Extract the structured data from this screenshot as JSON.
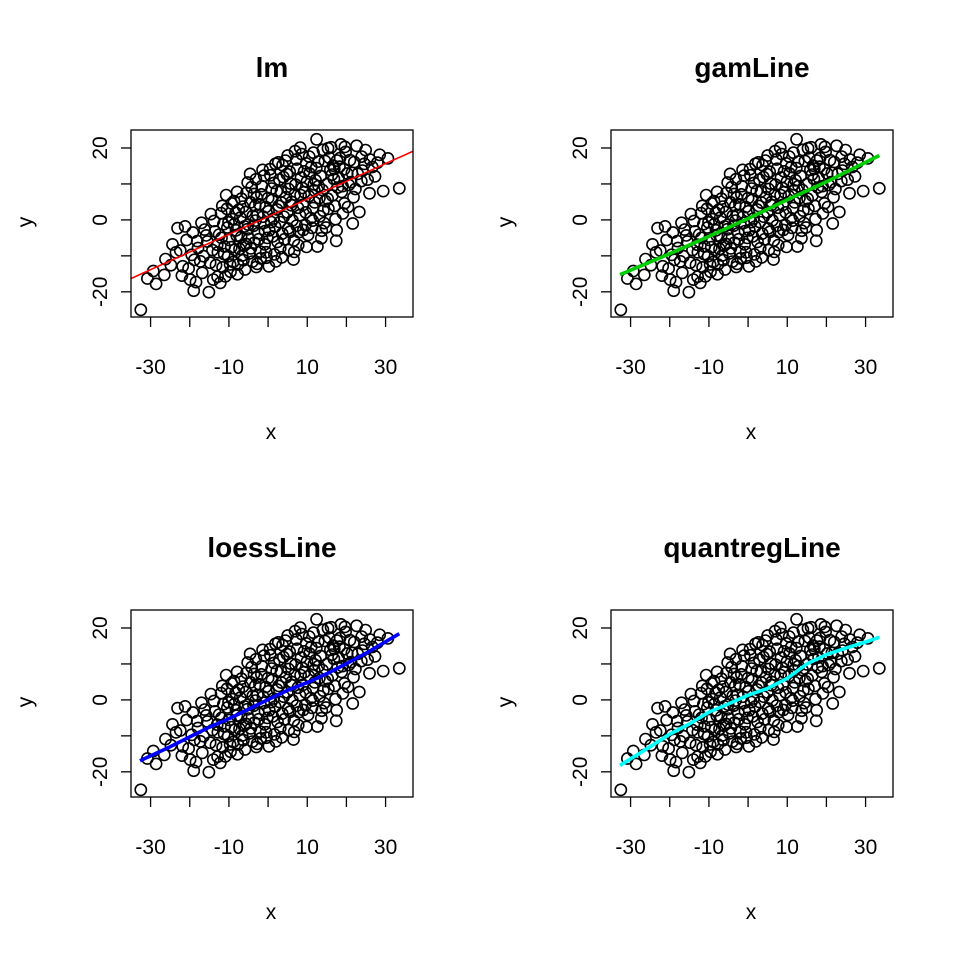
{
  "chart_data": [
    {
      "type": "scatter",
      "title": "lm",
      "xlabel": "x",
      "ylabel": "y",
      "xlim": [
        -35,
        37
      ],
      "ylim": [
        -27,
        25
      ],
      "xticks": [
        -30,
        -20,
        -10,
        0,
        10,
        20,
        30
      ],
      "xtick_labels": [
        "-30",
        "",
        "-10",
        "",
        "10",
        "",
        "30"
      ],
      "yticks": [
        -20,
        -10,
        0,
        10,
        20
      ],
      "ytick_labels": [
        "-20",
        "",
        "0",
        "",
        "20"
      ],
      "grid": false,
      "points_ref": "scatter_points",
      "fit": {
        "method": "lm",
        "color": "#ff0000",
        "x": [
          -35,
          37
        ],
        "y": [
          -16.3,
          19.1
        ]
      }
    },
    {
      "type": "scatter",
      "title": "gamLine",
      "xlabel": "x",
      "ylabel": "y",
      "xlim": [
        -35,
        37
      ],
      "ylim": [
        -27,
        25
      ],
      "xticks": [
        -30,
        -20,
        -10,
        0,
        10,
        20,
        30
      ],
      "xtick_labels": [
        "-30",
        "",
        "-10",
        "",
        "10",
        "",
        "30"
      ],
      "yticks": [
        -20,
        -10,
        0,
        10,
        20
      ],
      "ytick_labels": [
        "-20",
        "",
        "0",
        "",
        "20"
      ],
      "grid": false,
      "points_ref": "scatter_points",
      "fit": {
        "method": "gamLine",
        "color": "#00cd00",
        "x": [
          -32.7,
          -20,
          -10,
          0,
          10,
          20,
          33.5
        ],
        "y": [
          -15.2,
          -9.4,
          -4.6,
          0.4,
          5.6,
          10.6,
          17.9
        ]
      }
    },
    {
      "type": "scatter",
      "title": "loessLine",
      "xlabel": "x",
      "ylabel": "y",
      "xlim": [
        -35,
        37
      ],
      "ylim": [
        -27,
        25
      ],
      "xticks": [
        -30,
        -20,
        -10,
        0,
        10,
        20,
        30
      ],
      "xtick_labels": [
        "-30",
        "",
        "-10",
        "",
        "10",
        "",
        "30"
      ],
      "yticks": [
        -20,
        -10,
        0,
        10,
        20
      ],
      "ytick_labels": [
        "-20",
        "",
        "0",
        "",
        "20"
      ],
      "grid": false,
      "points_ref": "scatter_points",
      "fit": {
        "method": "loessLine",
        "color": "#0000ff",
        "x": [
          -32.7,
          -25,
          -20,
          -15,
          -10,
          -5,
          0,
          5,
          10,
          15,
          20,
          25,
          33.5
        ],
        "y": [
          -16.9,
          -13.0,
          -10.3,
          -7.6,
          -5.2,
          -2.6,
          0.1,
          2.7,
          4.8,
          7.3,
          10.1,
          13.0,
          18.4
        ]
      }
    },
    {
      "type": "scatter",
      "title": "quantregLine",
      "xlabel": "x",
      "ylabel": "y",
      "xlim": [
        -35,
        37
      ],
      "ylim": [
        -27,
        25
      ],
      "xticks": [
        -30,
        -20,
        -10,
        0,
        10,
        20,
        30
      ],
      "xtick_labels": [
        "-30",
        "",
        "-10",
        "",
        "10",
        "",
        "30"
      ],
      "yticks": [
        -20,
        -10,
        0,
        10,
        20
      ],
      "ytick_labels": [
        "-20",
        "",
        "0",
        "",
        "20"
      ],
      "grid": false,
      "points_ref": "scatter_points",
      "fit": {
        "method": "quantregLine",
        "color": "#00ffff",
        "x": [
          -32.7,
          -25,
          -20,
          -15,
          -10,
          -5,
          0,
          5,
          10,
          15,
          20,
          25,
          30,
          33.5
        ],
        "y": [
          -18.2,
          -13.0,
          -9.5,
          -6.7,
          -3.4,
          -1.1,
          1.3,
          3.2,
          6.0,
          10.0,
          12.6,
          14.4,
          16.1,
          17.4
        ]
      }
    }
  ],
  "scatter_points": [
    [
      -32.5,
      -25.0
    ],
    [
      -30.8,
      -16.3
    ],
    [
      -29.3,
      -14.2
    ],
    [
      -28.6,
      -17.8
    ],
    [
      -26.5,
      -15.3
    ],
    [
      -24.4,
      -6.8
    ],
    [
      -23.1,
      -2.3
    ],
    [
      -21.8,
      -12.9
    ],
    [
      -21.2,
      -1.8
    ],
    [
      -20.3,
      -13.5
    ],
    [
      -19.5,
      -9.7
    ],
    [
      -18.4,
      -17.3
    ],
    [
      -18.1,
      -5.9
    ],
    [
      -17.3,
      -11.5
    ],
    [
      -16.2,
      -2.7
    ],
    [
      -15.1,
      -20.1
    ],
    [
      -14.6,
      1.6
    ],
    [
      -14.2,
      -8.4
    ],
    [
      -13.3,
      -12.6
    ],
    [
      -12.5,
      -4.1
    ],
    [
      -12.2,
      -17.5
    ],
    [
      -11.1,
      -7.4
    ],
    [
      -10.7,
      6.9
    ],
    [
      -10.2,
      -10.1
    ],
    [
      -9.6,
      -14.4
    ],
    [
      -9.1,
      0.2
    ],
    [
      -8.2,
      -2.9
    ],
    [
      -7.3,
      -8.1
    ],
    [
      -6.4,
      3.7
    ],
    [
      -5.9,
      -13.8
    ],
    [
      -5.1,
      -1.3
    ],
    [
      -4.2,
      9.1
    ],
    [
      -3.5,
      -6.3
    ],
    [
      -2.8,
      -12.2
    ],
    [
      -2.2,
      4.3
    ],
    [
      -1.1,
      -0.8
    ],
    [
      -0.4,
      -10.5
    ],
    [
      0.6,
      12.4
    ],
    [
      1.2,
      -4.6
    ],
    [
      2.3,
      2.9
    ],
    [
      3.1,
      -7.9
    ],
    [
      3.7,
      15.2
    ],
    [
      4.6,
      6.3
    ],
    [
      5.1,
      -2.4
    ],
    [
      5.8,
      10.1
    ],
    [
      6.5,
      -11.0
    ],
    [
      7.4,
      14.2
    ],
    [
      8.1,
      1.3
    ],
    [
      8.6,
      18.3
    ],
    [
      9.3,
      7.7
    ],
    [
      10.2,
      -4.2
    ],
    [
      10.6,
      12.9
    ],
    [
      11.5,
      3.3
    ],
    [
      12.4,
      22.4
    ],
    [
      12.9,
      9.4
    ],
    [
      13.7,
      -3.0
    ],
    [
      14.5,
      16.4
    ],
    [
      15.2,
      5.9
    ],
    [
      16.1,
      20.2
    ],
    [
      16.8,
      11.4
    ],
    [
      17.4,
      -5.8
    ],
    [
      18.2,
      14.8
    ],
    [
      19.1,
      1.8
    ],
    [
      19.8,
      18.9
    ],
    [
      20.6,
      9.7
    ],
    [
      21.4,
      13.1
    ],
    [
      22.6,
      20.6
    ],
    [
      23.3,
      2.2
    ],
    [
      24.6,
      15.6
    ],
    [
      25.9,
      7.4
    ],
    [
      27.3,
      12.1
    ],
    [
      28.5,
      18.1
    ],
    [
      29.4,
      8.0
    ],
    [
      30.6,
      17.1
    ],
    [
      33.5,
      8.8
    ],
    [
      -22.4,
      -8.5
    ],
    [
      -19.2,
      -3.5
    ],
    [
      -16.8,
      -14.7
    ],
    [
      -15.5,
      -6.0
    ],
    [
      -13.8,
      -0.3
    ],
    [
      -11.6,
      -13.2
    ],
    [
      -10.4,
      -2.1
    ],
    [
      -8.7,
      5.2
    ],
    [
      -7.8,
      -15.1
    ],
    [
      -6.9,
      -4.8
    ],
    [
      -5.5,
      7.5
    ],
    [
      -4.8,
      -9.3
    ],
    [
      -3.9,
      1.1
    ],
    [
      -3.1,
      11.3
    ],
    [
      -2.5,
      -3.7
    ],
    [
      -1.7,
      7.1
    ],
    [
      -0.9,
      -6.8
    ],
    [
      0.1,
      2.4
    ],
    [
      0.9,
      8.7
    ],
    [
      1.8,
      -1.9
    ],
    [
      2.6,
      16.0
    ],
    [
      3.4,
      4.8
    ],
    [
      4.2,
      -5.4
    ],
    [
      5.5,
      13.4
    ],
    [
      6.2,
      -0.1
    ],
    [
      7.0,
      9.8
    ],
    [
      7.7,
      -7.0
    ],
    [
      8.9,
      4.2
    ],
    [
      9.7,
      15.7
    ],
    [
      10.9,
      0.5
    ],
    [
      11.8,
      8.2
    ],
    [
      12.6,
      -7.4
    ],
    [
      13.4,
      12.2
    ],
    [
      14.1,
      2.6
    ],
    [
      15.6,
      17.3
    ],
    [
      16.4,
      6.8
    ],
    [
      17.8,
      9.0
    ],
    [
      18.6,
      21.0
    ],
    [
      19.5,
      4.6
    ],
    [
      20.9,
      16.6
    ],
    [
      21.8,
      6.3
    ],
    [
      23.8,
      10.8
    ],
    [
      24.9,
      19.4
    ],
    [
      26.6,
      14.7
    ],
    [
      -9.9,
      -5.6
    ],
    [
      -8.6,
      -1.2
    ],
    [
      -7.5,
      2.8
    ],
    [
      -6.2,
      -7.2
    ],
    [
      -5.3,
      -2.6
    ],
    [
      -4.5,
      4.9
    ],
    [
      -3.7,
      -1.6
    ],
    [
      -2.9,
      6.2
    ],
    [
      -2.0,
      -8.8
    ],
    [
      -1.3,
      0.9
    ],
    [
      -0.6,
      3.6
    ],
    [
      0.3,
      -2.9
    ],
    [
      1.0,
      5.5
    ],
    [
      1.6,
      -9.6
    ],
    [
      2.2,
      8.0
    ],
    [
      3.0,
      -0.6
    ],
    [
      3.9,
      11.9
    ],
    [
      4.9,
      2.1
    ],
    [
      5.6,
      -3.3
    ],
    [
      6.8,
      7.1
    ],
    [
      7.6,
      3.4
    ],
    [
      8.4,
      11.8
    ],
    [
      9.5,
      -1.5
    ],
    [
      10.4,
      6.6
    ],
    [
      11.2,
      -2.2
    ],
    [
      12.1,
      11.0
    ],
    [
      13.1,
      6.1
    ],
    [
      14.3,
      -0.9
    ],
    [
      15.0,
      9.9
    ],
    [
      15.9,
      13.9
    ],
    [
      17.0,
      3.9
    ],
    [
      18.0,
      11.8
    ],
    [
      -12.8,
      -9.0
    ],
    [
      -11.9,
      -5.0
    ],
    [
      -11.4,
      -1.2
    ],
    [
      -10.5,
      3.1
    ],
    [
      -9.4,
      -7.6
    ],
    [
      -8.9,
      -11.7
    ],
    [
      -8.0,
      -4.4
    ],
    [
      -7.1,
      0.6
    ],
    [
      -6.6,
      -9.9
    ],
    [
      -5.7,
      2.2
    ],
    [
      -4.9,
      -5.2
    ],
    [
      -4.0,
      -11.6
    ],
    [
      -3.3,
      3.9
    ],
    [
      -2.4,
      -5.4
    ],
    [
      -1.6,
      9.4
    ],
    [
      -0.8,
      -3.1
    ],
    [
      0.0,
      6.1
    ],
    [
      0.8,
      -0.6
    ],
    [
      1.5,
      10.3
    ],
    [
      2.4,
      -6.1
    ],
    [
      3.3,
      7.9
    ],
    [
      4.0,
      0.9
    ],
    [
      4.8,
      12.7
    ],
    [
      5.9,
      4.1
    ],
    [
      6.6,
      -5.7
    ],
    [
      7.2,
      16.8
    ],
    [
      8.3,
      6.9
    ],
    [
      9.0,
      -2.8
    ],
    [
      9.9,
      10.6
    ],
    [
      11.0,
      14.7
    ],
    [
      11.9,
      4.9
    ],
    [
      12.8,
      16.2
    ],
    [
      13.9,
      8.3
    ],
    [
      14.8,
      -2.1
    ],
    [
      16.3,
      12.6
    ],
    [
      17.6,
      16.5
    ],
    [
      18.8,
      7.8
    ],
    [
      20.2,
      12.9
    ],
    [
      22.0,
      16.1
    ],
    [
      -26.2,
      -10.9
    ],
    [
      -24.8,
      -12.6
    ],
    [
      -23.5,
      -9.0
    ],
    [
      -22.0,
      -15.5
    ],
    [
      -20.8,
      -5.6
    ],
    [
      -19.9,
      -16.6
    ],
    [
      -18.8,
      -11.1
    ],
    [
      -17.9,
      -7.8
    ],
    [
      -16.5,
      -10.1
    ],
    [
      -15.8,
      -4.3
    ],
    [
      -14.8,
      -11.9
    ],
    [
      -13.6,
      -3.2
    ],
    [
      -12.9,
      -15.8
    ],
    [
      -12.0,
      1.9
    ],
    [
      -11.2,
      -9.5
    ],
    [
      -10.1,
      -0.7
    ],
    [
      -9.3,
      4.6
    ],
    [
      -8.5,
      -8.3
    ],
    [
      -7.7,
      -12.4
    ],
    [
      -6.8,
      5.9
    ],
    [
      -6.0,
      -1.8
    ],
    [
      -5.2,
      10.4
    ],
    [
      -4.4,
      -7.9
    ],
    [
      -3.6,
      7.2
    ],
    [
      -2.7,
      1.4
    ],
    [
      -1.9,
      -10.7
    ],
    [
      -1.0,
      12.3
    ],
    [
      -0.2,
      -5.0
    ],
    [
      0.5,
      14.1
    ],
    [
      1.4,
      0.4
    ],
    [
      2.0,
      -11.5
    ],
    [
      2.9,
      11.2
    ],
    [
      3.6,
      -3.8
    ],
    [
      4.4,
      16.5
    ],
    [
      5.3,
      -8.4
    ],
    [
      6.0,
      5.0
    ],
    [
      6.9,
      19.1
    ],
    [
      7.9,
      -3.4
    ],
    [
      8.7,
      8.9
    ],
    [
      9.6,
      2.1
    ],
    [
      10.5,
      17.6
    ],
    [
      11.4,
      -0.2
    ],
    [
      12.3,
      14.4
    ],
    [
      13.2,
      1.0
    ],
    [
      14.0,
      19.5
    ],
    [
      15.4,
      3.1
    ],
    [
      16.6,
      15.1
    ],
    [
      17.2,
      0.2
    ],
    [
      18.4,
      17.2
    ],
    [
      19.4,
      14.1
    ],
    [
      20.4,
      3.6
    ],
    [
      21.2,
      10.5
    ],
    [
      22.9,
      12.8
    ],
    [
      23.9,
      17.6
    ],
    [
      25.4,
      11.2
    ],
    [
      27.9,
      15.9
    ],
    [
      -17.0,
      -0.8
    ],
    [
      -14.0,
      -16.6
    ],
    [
      -11.7,
      3.9
    ],
    [
      -9.7,
      -12.4
    ],
    [
      -7.9,
      7.8
    ],
    [
      -6.3,
      -11.2
    ],
    [
      -4.6,
      12.8
    ],
    [
      -3.0,
      -13.1
    ],
    [
      -1.4,
      13.9
    ],
    [
      0.2,
      -12.9
    ],
    [
      1.9,
      15.6
    ],
    [
      3.5,
      -10.4
    ],
    [
      5.0,
      17.9
    ],
    [
      6.7,
      -8.9
    ],
    [
      8.2,
      20.1
    ],
    [
      9.8,
      -7.5
    ],
    [
      11.6,
      18.7
    ],
    [
      13.6,
      -5.1
    ],
    [
      15.3,
      19.9
    ],
    [
      17.5,
      -2.9
    ],
    [
      19.6,
      20.3
    ],
    [
      21.6,
      -1.0
    ],
    [
      -19.0,
      -19.7
    ],
    [
      -13.0,
      -6.9
    ],
    [
      -10.9,
      -15.7
    ],
    [
      -8.3,
      2.0
    ],
    [
      -5.6,
      -6.7
    ],
    [
      -3.2,
      -0.2
    ],
    [
      -0.5,
      -9.0
    ],
    [
      2.7,
      3.9
    ],
    [
      5.2,
      8.6
    ],
    [
      7.3,
      -1.6
    ],
    [
      9.2,
      13.5
    ],
    [
      11.7,
      9.9
    ],
    [
      14.6,
      5.2
    ],
    [
      16.9,
      14.2
    ],
    [
      19.0,
      9.4
    ],
    [
      22.3,
      8.6
    ],
    [
      24.1,
      13.7
    ],
    [
      26.0,
      16.8
    ]
  ]
}
